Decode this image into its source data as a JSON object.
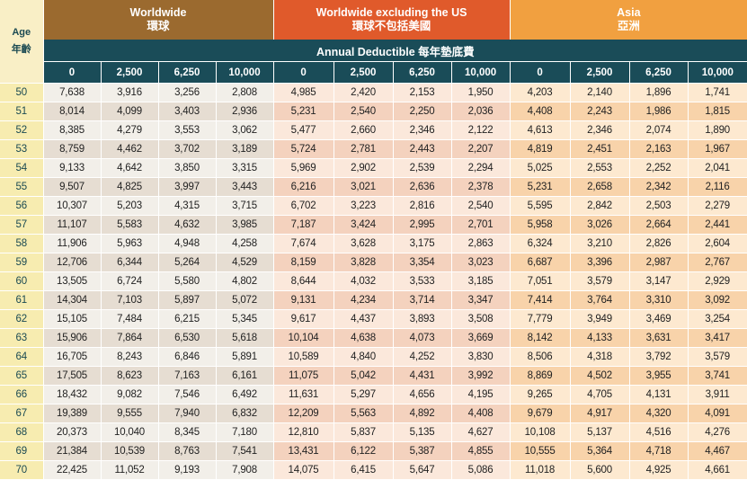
{
  "header": {
    "age_en": "Age",
    "age_zh": "年齡",
    "groups": [
      {
        "en": "Worldwide",
        "zh": "環球"
      },
      {
        "en": "Worldwide excluding the US",
        "zh": "環球不包括美國"
      },
      {
        "en": "Asia",
        "zh": "亞洲"
      }
    ],
    "deductible_label": "Annual Deductible  每年墊底費",
    "deductibles": [
      "0",
      "2,500",
      "6,250",
      "10,000"
    ]
  },
  "rows": [
    {
      "age": "50",
      "values": [
        "7,638",
        "3,916",
        "3,256",
        "2,808",
        "4,985",
        "2,420",
        "2,153",
        "1,950",
        "4,203",
        "2,140",
        "1,896",
        "1,741"
      ]
    },
    {
      "age": "51",
      "values": [
        "8,014",
        "4,099",
        "3,403",
        "2,936",
        "5,231",
        "2,540",
        "2,250",
        "2,036",
        "4,408",
        "2,243",
        "1,986",
        "1,815"
      ]
    },
    {
      "age": "52",
      "values": [
        "8,385",
        "4,279",
        "3,553",
        "3,062",
        "5,477",
        "2,660",
        "2,346",
        "2,122",
        "4,613",
        "2,346",
        "2,074",
        "1,890"
      ]
    },
    {
      "age": "53",
      "values": [
        "8,759",
        "4,462",
        "3,702",
        "3,189",
        "5,724",
        "2,781",
        "2,443",
        "2,207",
        "4,819",
        "2,451",
        "2,163",
        "1,967"
      ]
    },
    {
      "age": "54",
      "values": [
        "9,133",
        "4,642",
        "3,850",
        "3,315",
        "5,969",
        "2,902",
        "2,539",
        "2,294",
        "5,025",
        "2,553",
        "2,252",
        "2,041"
      ]
    },
    {
      "age": "55",
      "values": [
        "9,507",
        "4,825",
        "3,997",
        "3,443",
        "6,216",
        "3,021",
        "2,636",
        "2,378",
        "5,231",
        "2,658",
        "2,342",
        "2,116"
      ]
    },
    {
      "age": "56",
      "values": [
        "10,307",
        "5,203",
        "4,315",
        "3,715",
        "6,702",
        "3,223",
        "2,816",
        "2,540",
        "5,595",
        "2,842",
        "2,503",
        "2,279"
      ]
    },
    {
      "age": "57",
      "values": [
        "11,107",
        "5,583",
        "4,632",
        "3,985",
        "7,187",
        "3,424",
        "2,995",
        "2,701",
        "5,958",
        "3,026",
        "2,664",
        "2,441"
      ]
    },
    {
      "age": "58",
      "values": [
        "11,906",
        "5,963",
        "4,948",
        "4,258",
        "7,674",
        "3,628",
        "3,175",
        "2,863",
        "6,324",
        "3,210",
        "2,826",
        "2,604"
      ]
    },
    {
      "age": "59",
      "values": [
        "12,706",
        "6,344",
        "5,264",
        "4,529",
        "8,159",
        "3,828",
        "3,354",
        "3,023",
        "6,687",
        "3,396",
        "2,987",
        "2,767"
      ]
    },
    {
      "age": "60",
      "values": [
        "13,505",
        "6,724",
        "5,580",
        "4,802",
        "8,644",
        "4,032",
        "3,533",
        "3,185",
        "7,051",
        "3,579",
        "3,147",
        "2,929"
      ]
    },
    {
      "age": "61",
      "values": [
        "14,304",
        "7,103",
        "5,897",
        "5,072",
        "9,131",
        "4,234",
        "3,714",
        "3,347",
        "7,414",
        "3,764",
        "3,310",
        "3,092"
      ]
    },
    {
      "age": "62",
      "values": [
        "15,105",
        "7,484",
        "6,215",
        "5,345",
        "9,617",
        "4,437",
        "3,893",
        "3,508",
        "7,779",
        "3,949",
        "3,469",
        "3,254"
      ]
    },
    {
      "age": "63",
      "values": [
        "15,906",
        "7,864",
        "6,530",
        "5,618",
        "10,104",
        "4,638",
        "4,073",
        "3,669",
        "8,142",
        "4,133",
        "3,631",
        "3,417"
      ]
    },
    {
      "age": "64",
      "values": [
        "16,705",
        "8,243",
        "6,846",
        "5,891",
        "10,589",
        "4,840",
        "4,252",
        "3,830",
        "8,506",
        "4,318",
        "3,792",
        "3,579"
      ]
    },
    {
      "age": "65",
      "values": [
        "17,505",
        "8,623",
        "7,163",
        "6,161",
        "11,075",
        "5,042",
        "4,431",
        "3,992",
        "8,869",
        "4,502",
        "3,955",
        "3,741"
      ]
    },
    {
      "age": "66",
      "values": [
        "18,432",
        "9,082",
        "7,546",
        "6,492",
        "11,631",
        "5,297",
        "4,656",
        "4,195",
        "9,265",
        "4,705",
        "4,131",
        "3,911"
      ]
    },
    {
      "age": "67",
      "values": [
        "19,389",
        "9,555",
        "7,940",
        "6,832",
        "12,209",
        "5,563",
        "4,892",
        "4,408",
        "9,679",
        "4,917",
        "4,320",
        "4,091"
      ]
    },
    {
      "age": "68",
      "values": [
        "20,373",
        "10,040",
        "8,345",
        "7,180",
        "12,810",
        "5,837",
        "5,135",
        "4,627",
        "10,108",
        "5,137",
        "4,516",
        "4,276"
      ]
    },
    {
      "age": "69",
      "values": [
        "21,384",
        "10,539",
        "8,763",
        "7,541",
        "13,431",
        "6,122",
        "5,387",
        "4,855",
        "10,555",
        "5,364",
        "4,718",
        "4,467"
      ]
    },
    {
      "age": "70",
      "values": [
        "22,425",
        "11,052",
        "9,193",
        "7,908",
        "14,075",
        "6,415",
        "5,647",
        "5,086",
        "11,018",
        "5,600",
        "4,925",
        "4,661"
      ]
    }
  ]
}
